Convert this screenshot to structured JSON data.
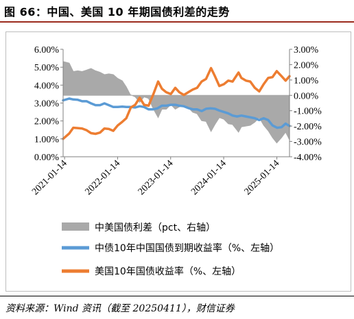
{
  "figure_title": "图 66：中国、美国 10 年期国债利差的走势",
  "source": "资料来源：Wind 资讯（截至 20250411），财信证券",
  "colors": {
    "spread": "#a9a9a9",
    "china": "#5b9bd5",
    "us": "#ed7d31",
    "title_rule": "#9b2a1c"
  },
  "chart_data": {
    "type": "line",
    "x_type": "date",
    "left_axis": {
      "ylim": [
        0,
        6
      ],
      "ticks": [
        "0.00%",
        "1.00%",
        "2.00%",
        "3.00%",
        "4.00%",
        "5.00%",
        "6.00%"
      ]
    },
    "right_axis": {
      "ylim": [
        -4,
        3
      ],
      "ticks": [
        "-4.00%",
        "-3.00%",
        "-2.00%",
        "-1.00%",
        "0.00%",
        "1.00%",
        "2.00%",
        "3.00%"
      ]
    },
    "x_range": [
      "2021-01-04",
      "2025-04-11"
    ],
    "x_ticks": [
      "2021-01-14",
      "2022-01-14",
      "2023-01-14",
      "2024-01-14",
      "2025-01-14"
    ],
    "legend_position": "bottom",
    "series": [
      {
        "name": "中美国债利差（pct、右轴）",
        "kind": "area",
        "axis": "right",
        "points": [
          [
            "2021-01-04",
            2.2
          ],
          [
            "2021-02-15",
            2.1
          ],
          [
            "2021-03-15",
            1.55
          ],
          [
            "2021-04-15",
            1.6
          ],
          [
            "2021-05-15",
            1.55
          ],
          [
            "2021-06-15",
            1.65
          ],
          [
            "2021-07-15",
            1.75
          ],
          [
            "2021-08-15",
            1.6
          ],
          [
            "2021-09-15",
            1.5
          ],
          [
            "2021-10-15",
            1.35
          ],
          [
            "2021-11-15",
            1.4
          ],
          [
            "2021-12-15",
            1.35
          ],
          [
            "2022-01-15",
            1.1
          ],
          [
            "2022-02-15",
            0.95
          ],
          [
            "2022-03-15",
            0.55
          ],
          [
            "2022-04-11",
            0.05
          ],
          [
            "2022-05-15",
            -0.1
          ],
          [
            "2022-06-15",
            -0.45
          ],
          [
            "2022-07-15",
            -0.1
          ],
          [
            "2022-08-15",
            -0.2
          ],
          [
            "2022-09-15",
            -0.85
          ],
          [
            "2022-10-20",
            -1.45
          ],
          [
            "2022-11-15",
            -0.9
          ],
          [
            "2022-12-15",
            -0.9
          ],
          [
            "2023-01-15",
            -0.6
          ],
          [
            "2023-02-15",
            -0.9
          ],
          [
            "2023-03-15",
            -0.75
          ],
          [
            "2023-04-15",
            -0.65
          ],
          [
            "2023-05-15",
            -0.8
          ],
          [
            "2023-06-15",
            -1.1
          ],
          [
            "2023-07-15",
            -1.2
          ],
          [
            "2023-08-15",
            -1.65
          ],
          [
            "2023-09-15",
            -1.7
          ],
          [
            "2023-10-19",
            -2.35
          ],
          [
            "2023-11-15",
            -1.9
          ],
          [
            "2023-12-15",
            -1.45
          ],
          [
            "2024-01-15",
            -1.55
          ],
          [
            "2024-02-15",
            -1.85
          ],
          [
            "2024-03-15",
            -1.9
          ],
          [
            "2024-04-25",
            -2.4
          ],
          [
            "2024-05-15",
            -2.05
          ],
          [
            "2024-06-15",
            -2.0
          ],
          [
            "2024-07-15",
            -1.95
          ],
          [
            "2024-08-15",
            -1.75
          ],
          [
            "2024-09-15",
            -1.45
          ],
          [
            "2024-10-15",
            -1.95
          ],
          [
            "2024-11-15",
            -2.3
          ],
          [
            "2024-12-15",
            -2.75
          ],
          [
            "2025-01-13",
            -3.1
          ],
          [
            "2025-02-15",
            -2.75
          ],
          [
            "2025-03-15",
            -2.4
          ],
          [
            "2025-04-11",
            -2.9
          ]
        ]
      },
      {
        "name": "中债10年中国国债到期收益率（%、左轴）",
        "kind": "line",
        "axis": "left",
        "points": [
          [
            "2021-01-04",
            3.15
          ],
          [
            "2021-02-15",
            3.25
          ],
          [
            "2021-03-15",
            3.2
          ],
          [
            "2021-04-15",
            3.18
          ],
          [
            "2021-05-15",
            3.1
          ],
          [
            "2021-06-15",
            3.1
          ],
          [
            "2021-07-15",
            2.98
          ],
          [
            "2021-08-15",
            2.88
          ],
          [
            "2021-09-15",
            2.88
          ],
          [
            "2021-10-15",
            2.98
          ],
          [
            "2021-11-15",
            2.88
          ],
          [
            "2021-12-15",
            2.78
          ],
          [
            "2022-01-15",
            2.78
          ],
          [
            "2022-02-15",
            2.8
          ],
          [
            "2022-03-15",
            2.78
          ],
          [
            "2022-04-15",
            2.78
          ],
          [
            "2022-05-15",
            2.75
          ],
          [
            "2022-06-15",
            2.82
          ],
          [
            "2022-07-15",
            2.78
          ],
          [
            "2022-08-15",
            2.65
          ],
          [
            "2022-09-15",
            2.65
          ],
          [
            "2022-10-15",
            2.7
          ],
          [
            "2022-11-15",
            2.85
          ],
          [
            "2022-12-15",
            2.85
          ],
          [
            "2023-01-15",
            2.9
          ],
          [
            "2023-02-15",
            2.9
          ],
          [
            "2023-03-15",
            2.85
          ],
          [
            "2023-04-15",
            2.82
          ],
          [
            "2023-05-15",
            2.72
          ],
          [
            "2023-06-15",
            2.65
          ],
          [
            "2023-07-15",
            2.65
          ],
          [
            "2023-08-15",
            2.55
          ],
          [
            "2023-09-15",
            2.68
          ],
          [
            "2023-10-15",
            2.7
          ],
          [
            "2023-11-15",
            2.68
          ],
          [
            "2023-12-15",
            2.58
          ],
          [
            "2024-01-15",
            2.5
          ],
          [
            "2024-02-15",
            2.42
          ],
          [
            "2024-03-15",
            2.3
          ],
          [
            "2024-04-15",
            2.25
          ],
          [
            "2024-05-15",
            2.3
          ],
          [
            "2024-06-15",
            2.25
          ],
          [
            "2024-07-15",
            2.2
          ],
          [
            "2024-08-15",
            2.15
          ],
          [
            "2024-09-15",
            2.05
          ],
          [
            "2024-10-15",
            2.15
          ],
          [
            "2024-11-15",
            2.05
          ],
          [
            "2024-12-15",
            1.75
          ],
          [
            "2025-01-15",
            1.62
          ],
          [
            "2025-02-15",
            1.65
          ],
          [
            "2025-03-15",
            1.85
          ],
          [
            "2025-04-11",
            1.72
          ]
        ]
      },
      {
        "name": "美国10年国债收益率（%、左轴）",
        "kind": "line",
        "axis": "left",
        "points": [
          [
            "2021-01-04",
            1.0
          ],
          [
            "2021-02-15",
            1.3
          ],
          [
            "2021-03-15",
            1.62
          ],
          [
            "2021-04-15",
            1.6
          ],
          [
            "2021-05-15",
            1.58
          ],
          [
            "2021-06-15",
            1.48
          ],
          [
            "2021-07-15",
            1.32
          ],
          [
            "2021-08-15",
            1.28
          ],
          [
            "2021-09-15",
            1.35
          ],
          [
            "2021-10-15",
            1.58
          ],
          [
            "2021-11-15",
            1.55
          ],
          [
            "2021-12-15",
            1.45
          ],
          [
            "2022-01-15",
            1.75
          ],
          [
            "2022-02-15",
            1.95
          ],
          [
            "2022-03-15",
            2.15
          ],
          [
            "2022-04-15",
            2.75
          ],
          [
            "2022-05-15",
            2.9
          ],
          [
            "2022-06-15",
            3.3
          ],
          [
            "2022-07-15",
            2.9
          ],
          [
            "2022-08-15",
            2.85
          ],
          [
            "2022-09-15",
            3.45
          ],
          [
            "2022-10-20",
            4.2
          ],
          [
            "2022-11-15",
            3.8
          ],
          [
            "2022-12-15",
            3.6
          ],
          [
            "2023-01-15",
            3.5
          ],
          [
            "2023-02-15",
            3.85
          ],
          [
            "2023-03-15",
            3.6
          ],
          [
            "2023-04-15",
            3.45
          ],
          [
            "2023-05-15",
            3.6
          ],
          [
            "2023-06-15",
            3.75
          ],
          [
            "2023-07-15",
            3.85
          ],
          [
            "2023-08-15",
            4.2
          ],
          [
            "2023-09-15",
            4.35
          ],
          [
            "2023-10-19",
            4.95
          ],
          [
            "2023-11-15",
            4.5
          ],
          [
            "2023-12-15",
            3.95
          ],
          [
            "2024-01-15",
            4.05
          ],
          [
            "2024-02-15",
            4.25
          ],
          [
            "2024-03-15",
            4.2
          ],
          [
            "2024-04-25",
            4.7
          ],
          [
            "2024-05-15",
            4.4
          ],
          [
            "2024-06-15",
            4.25
          ],
          [
            "2024-07-15",
            4.2
          ],
          [
            "2024-08-15",
            3.85
          ],
          [
            "2024-09-15",
            3.65
          ],
          [
            "2024-10-15",
            4.05
          ],
          [
            "2024-11-15",
            4.4
          ],
          [
            "2024-12-15",
            4.45
          ],
          [
            "2025-01-13",
            4.78
          ],
          [
            "2025-02-15",
            4.5
          ],
          [
            "2025-03-15",
            4.25
          ],
          [
            "2025-04-11",
            4.5
          ]
        ]
      }
    ]
  }
}
